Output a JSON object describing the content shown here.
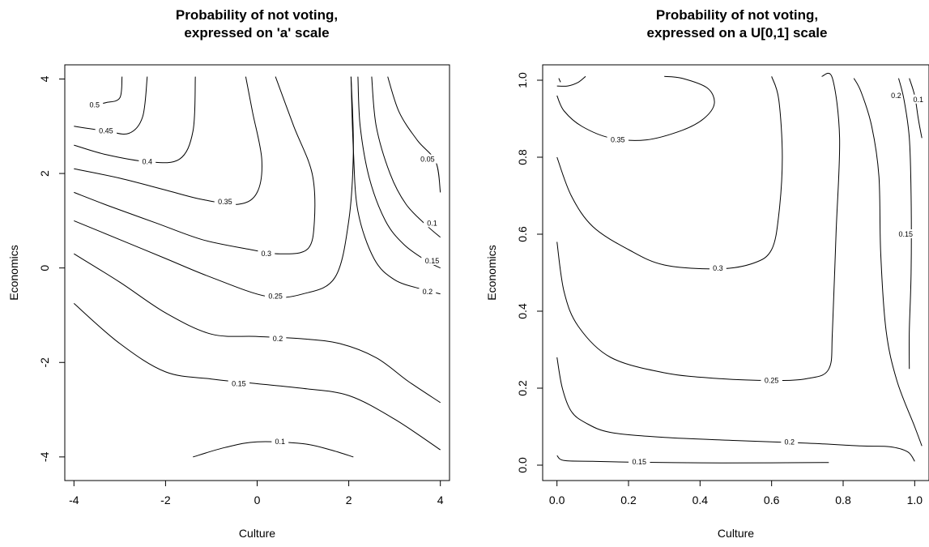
{
  "chart_data": [
    {
      "type": "contour",
      "title_lines": [
        "Probability of not voting,",
        "expressed on 'a' scale"
      ],
      "xlabel": "Culture",
      "ylabel": "Economics",
      "xlim": [
        -4.2,
        4.2
      ],
      "ylim": [
        -4.5,
        4.3
      ],
      "xticks": [
        -4,
        -2,
        0,
        2,
        4
      ],
      "yticks": [
        -4,
        -2,
        0,
        2,
        4
      ],
      "xtick_labels": [
        "-4",
        "-2",
        "0",
        "2",
        "4"
      ],
      "ytick_labels": [
        "-4",
        "-2",
        "0",
        "2",
        "4"
      ],
      "contours": [
        {
          "level": "0.5",
          "points": [
            [
              -3.6,
              3.45
            ],
            [
              -3.3,
              3.5
            ],
            [
              -3.0,
              3.6
            ],
            [
              -2.95,
              4.05
            ]
          ],
          "label_at": [
            -3.55,
            3.45
          ]
        },
        {
          "level": "0.45",
          "points": [
            [
              -4.0,
              3.0
            ],
            [
              -3.3,
              2.9
            ],
            [
              -2.8,
              2.85
            ],
            [
              -2.5,
              3.2
            ],
            [
              -2.4,
              4.05
            ]
          ],
          "label_at": [
            -3.3,
            2.9
          ]
        },
        {
          "level": "0.4",
          "points": [
            [
              -4.0,
              2.6
            ],
            [
              -3.3,
              2.4
            ],
            [
              -2.4,
              2.25
            ],
            [
              -1.7,
              2.3
            ],
            [
              -1.4,
              2.9
            ],
            [
              -1.35,
              4.05
            ]
          ],
          "label_at": [
            -2.4,
            2.25
          ]
        },
        {
          "level": "0.35",
          "points": [
            [
              -4.0,
              2.1
            ],
            [
              -3.0,
              1.9
            ],
            [
              -2.0,
              1.65
            ],
            [
              -1.2,
              1.45
            ],
            [
              -0.4,
              1.35
            ],
            [
              0.0,
              1.6
            ],
            [
              0.1,
              2.3
            ],
            [
              -0.1,
              3.3
            ],
            [
              -0.25,
              4.05
            ]
          ],
          "label_at": [
            -0.7,
            1.4
          ]
        },
        {
          "level": "0.3",
          "points": [
            [
              -4.0,
              1.6
            ],
            [
              -3.2,
              1.3
            ],
            [
              -2.2,
              0.95
            ],
            [
              -1.2,
              0.6
            ],
            [
              -0.2,
              0.4
            ],
            [
              0.5,
              0.3
            ],
            [
              1.1,
              0.4
            ],
            [
              1.25,
              1.0
            ],
            [
              1.2,
              2.0
            ],
            [
              0.8,
              3.0
            ],
            [
              0.4,
              4.05
            ]
          ],
          "label_at": [
            0.2,
            0.3
          ]
        },
        {
          "level": "0.25",
          "points": [
            [
              -4.0,
              1.0
            ],
            [
              -3.0,
              0.6
            ],
            [
              -2.0,
              0.2
            ],
            [
              -1.0,
              -0.2
            ],
            [
              0.2,
              -0.6
            ],
            [
              1.0,
              -0.55
            ],
            [
              1.7,
              -0.2
            ],
            [
              2.0,
              1.0
            ],
            [
              2.1,
              2.5
            ],
            [
              2.05,
              4.05
            ]
          ],
          "label_at": [
            0.4,
            -0.6
          ]
        },
        {
          "level": "0.2",
          "points": [
            [
              -4.0,
              0.3
            ],
            [
              -3.0,
              -0.3
            ],
            [
              -2.0,
              -0.95
            ],
            [
              -1.0,
              -1.4
            ],
            [
              0.0,
              -1.45
            ],
            [
              1.0,
              -1.5
            ],
            [
              1.8,
              -1.6
            ],
            [
              2.6,
              -1.9
            ],
            [
              3.3,
              -2.4
            ],
            [
              4.0,
              -2.85
            ]
          ],
          "label_at": [
            0.45,
            -1.5
          ]
        },
        {
          "level": "0.15",
          "points": [
            [
              -4.0,
              -0.75
            ],
            [
              -3.0,
              -1.6
            ],
            [
              -2.0,
              -2.2
            ],
            [
              -1.0,
              -2.35
            ],
            [
              0.0,
              -2.45
            ],
            [
              1.0,
              -2.55
            ],
            [
              2.0,
              -2.7
            ],
            [
              3.0,
              -3.2
            ],
            [
              4.0,
              -3.85
            ]
          ],
          "label_at": [
            -0.4,
            -2.45
          ]
        },
        {
          "level": "0.1",
          "points": [
            [
              -1.4,
              -4.0
            ],
            [
              -0.7,
              -3.8
            ],
            [
              0.0,
              -3.68
            ],
            [
              1.0,
              -3.72
            ],
            [
              1.6,
              -3.85
            ],
            [
              2.1,
              -4.0
            ]
          ],
          "label_at": [
            0.5,
            -3.68
          ]
        },
        {
          "level": "0.05",
          "points": [
            [
              2.85,
              4.05
            ],
            [
              3.1,
              3.3
            ],
            [
              3.5,
              2.7
            ],
            [
              3.9,
              2.25
            ],
            [
              4.0,
              1.6
            ]
          ],
          "label_at": [
            3.72,
            2.3
          ]
        },
        {
          "level": "0.1",
          "points": [
            [
              2.5,
              4.05
            ],
            [
              2.6,
              3.0
            ],
            [
              2.9,
              2.0
            ],
            [
              3.25,
              1.35
            ],
            [
              3.7,
              0.9
            ],
            [
              4.0,
              0.65
            ]
          ],
          "label_at": [
            3.82,
            0.95
          ]
        },
        {
          "level": "0.15",
          "points": [
            [
              2.2,
              4.05
            ],
            [
              2.25,
              3.0
            ],
            [
              2.45,
              1.9
            ],
            [
              2.8,
              1.0
            ],
            [
              3.2,
              0.5
            ],
            [
              3.7,
              0.15
            ],
            [
              4.0,
              0.0
            ]
          ],
          "label_at": [
            3.82,
            0.15
          ]
        },
        {
          "level": "0.2",
          "points": [
            [
              2.05,
              4.05
            ],
            [
              2.1,
              2.5
            ],
            [
              2.2,
              1.2
            ],
            [
              2.55,
              0.2
            ],
            [
              3.0,
              -0.25
            ],
            [
              3.6,
              -0.45
            ],
            [
              4.0,
              -0.55
            ]
          ],
          "label_at": [
            3.72,
            -0.5
          ]
        }
      ]
    },
    {
      "type": "contour",
      "title_lines": [
        "Probability of not voting,",
        "expressed on a U[0,1] scale"
      ],
      "xlabel": "Culture",
      "ylabel": "Economics",
      "xlim": [
        -0.04,
        1.04
      ],
      "ylim": [
        -0.04,
        1.04
      ],
      "xticks": [
        0.0,
        0.2,
        0.4,
        0.6,
        0.8,
        1.0
      ],
      "yticks": [
        0.0,
        0.2,
        0.4,
        0.6,
        0.8,
        1.0
      ],
      "xtick_labels": [
        "0.0",
        "0.2",
        "0.4",
        "0.6",
        "0.8",
        "1.0"
      ],
      "ytick_labels": [
        "0.0",
        "0.2",
        "0.4",
        "0.6",
        "0.8",
        "1.0"
      ],
      "contours": [
        {
          "level": "0.35",
          "points": [
            [
              0.0,
              0.96
            ],
            [
              0.02,
              0.92
            ],
            [
              0.07,
              0.88
            ],
            [
              0.15,
              0.85
            ],
            [
              0.25,
              0.845
            ],
            [
              0.35,
              0.87
            ],
            [
              0.41,
              0.9
            ],
            [
              0.44,
              0.94
            ],
            [
              0.42,
              0.98
            ],
            [
              0.35,
              1.005
            ],
            [
              0.3,
              1.01
            ]
          ],
          "label_at": [
            0.17,
            0.845
          ]
        },
        {
          "level": "",
          "points": [
            [
              0.0,
              0.985
            ],
            [
              0.03,
              0.985
            ],
            [
              0.06,
              0.995
            ],
            [
              0.08,
              1.01
            ]
          ],
          "label_at": null
        },
        {
          "level": "",
          "points": [
            [
              0.005,
              1.005
            ],
            [
              0.01,
              0.995
            ]
          ],
          "label_at": null
        },
        {
          "level": "0.3",
          "points": [
            [
              0.0,
              0.8
            ],
            [
              0.04,
              0.7
            ],
            [
              0.1,
              0.62
            ],
            [
              0.2,
              0.56
            ],
            [
              0.3,
              0.52
            ],
            [
              0.45,
              0.51
            ],
            [
              0.55,
              0.525
            ],
            [
              0.6,
              0.56
            ],
            [
              0.62,
              0.65
            ],
            [
              0.63,
              0.8
            ],
            [
              0.62,
              0.95
            ],
            [
              0.6,
              1.01
            ]
          ],
          "label_at": [
            0.45,
            0.512
          ]
        },
        {
          "level": "0.25",
          "points": [
            [
              0.0,
              0.58
            ],
            [
              0.02,
              0.45
            ],
            [
              0.06,
              0.36
            ],
            [
              0.15,
              0.28
            ],
            [
              0.3,
              0.24
            ],
            [
              0.45,
              0.225
            ],
            [
              0.6,
              0.22
            ],
            [
              0.7,
              0.225
            ],
            [
              0.76,
              0.25
            ],
            [
              0.77,
              0.35
            ],
            [
              0.78,
              0.6
            ],
            [
              0.79,
              0.85
            ],
            [
              0.77,
              1.005
            ],
            [
              0.74,
              1.01
            ]
          ],
          "label_at": [
            0.6,
            0.22
          ]
        },
        {
          "level": "0.2",
          "points": [
            [
              0.0,
              0.28
            ],
            [
              0.015,
              0.2
            ],
            [
              0.04,
              0.14
            ],
            [
              0.08,
              0.11
            ],
            [
              0.15,
              0.085
            ],
            [
              0.3,
              0.072
            ],
            [
              0.5,
              0.064
            ],
            [
              0.7,
              0.057
            ],
            [
              0.85,
              0.05
            ],
            [
              0.93,
              0.048
            ],
            [
              0.98,
              0.035
            ],
            [
              1.0,
              0.01
            ]
          ],
          "label_at": [
            0.65,
            0.06
          ]
        },
        {
          "level": "0.15",
          "points": [
            [
              0.0,
              0.025
            ],
            [
              0.02,
              0.012
            ],
            [
              0.1,
              0.01
            ],
            [
              0.2,
              0.008
            ],
            [
              0.4,
              0.006
            ],
            [
              0.6,
              0.006
            ],
            [
              0.76,
              0.007
            ]
          ],
          "label_at": [
            0.23,
            0.008
          ]
        },
        {
          "level": "0.2",
          "points": [
            [
              0.83,
              1.005
            ],
            [
              0.85,
              0.97
            ],
            [
              0.88,
              0.88
            ],
            [
              0.9,
              0.75
            ],
            [
              0.905,
              0.55
            ],
            [
              0.92,
              0.35
            ],
            [
              0.95,
              0.22
            ],
            [
              1.0,
              0.1
            ],
            [
              1.02,
              0.05
            ]
          ],
          "label_at": [
            0.948,
            0.96
          ]
        },
        {
          "level": "0.15",
          "points": [
            [
              0.955,
              1.005
            ],
            [
              0.97,
              0.95
            ],
            [
              0.985,
              0.85
            ],
            [
              0.99,
              0.7
            ],
            [
              0.99,
              0.5
            ],
            [
              0.985,
              0.35
            ],
            [
              0.985,
              0.25
            ]
          ],
          "label_at": [
            0.975,
            0.6
          ]
        },
        {
          "level": "0.1",
          "points": [
            [
              0.985,
              1.005
            ],
            [
              1.0,
              0.96
            ],
            [
              1.01,
              0.9
            ],
            [
              1.02,
              0.85
            ]
          ],
          "label_at": [
            1.01,
            0.95
          ]
        }
      ]
    }
  ]
}
